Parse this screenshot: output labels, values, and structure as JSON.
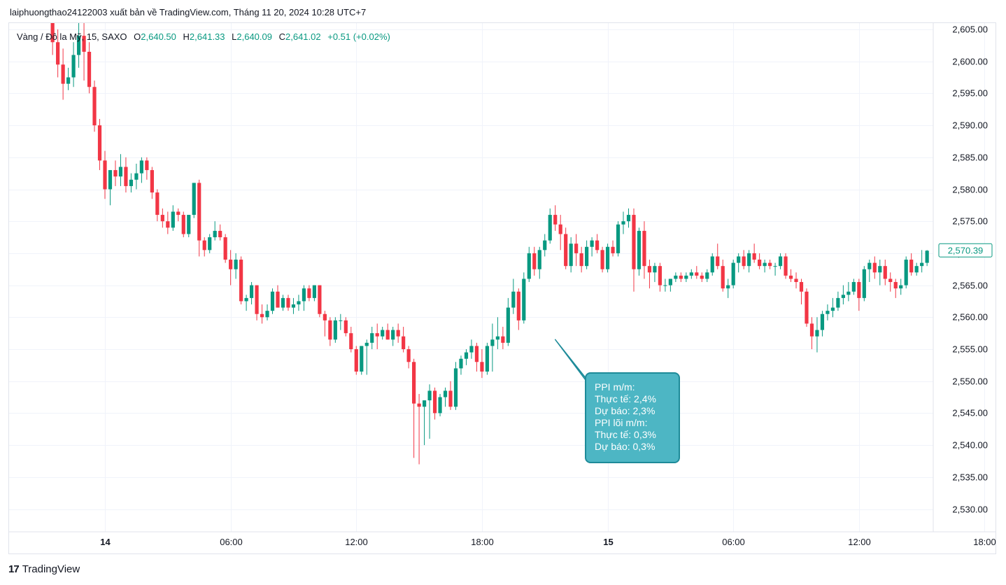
{
  "header": {
    "publisher_text": "laiphuongthao24122003 xuất bản về TradingView.com, Tháng 11 20, 2024 10:28 UTC+7"
  },
  "legend": {
    "symbol": "Vàng / Đô la Mỹ, 15, SAXO",
    "o_label": "O",
    "o_value": "2,640.50",
    "h_label": "H",
    "h_value": "2,641.33",
    "l_label": "L",
    "l_value": "2,640.09",
    "c_label": "C",
    "c_value": "2,641.02",
    "change": "+0.51 (+0.02%)"
  },
  "price_tag": "2,570.39",
  "annotation": {
    "lines": [
      "PPI m/m:",
      "Thực tế: 2,4%",
      "Dự báo: 2,3%",
      "PPI lõi m/m:",
      "Thực tế: 0,3%",
      "Dự báo: 0,3%"
    ]
  },
  "footer": {
    "logo_mark": "17",
    "brand": "TradingView"
  },
  "colors": {
    "up": "#089981",
    "down": "#f23645",
    "grid": "#f0f3fa",
    "annotation_fill": "#4db6c4",
    "annotation_border": "#1e8b99"
  },
  "chart_data": {
    "type": "candlestick",
    "interval": "15",
    "y_ticks": [
      "2,605.00",
      "2,600.00",
      "2,595.00",
      "2,590.00",
      "2,585.00",
      "2,580.00",
      "2,575.00",
      "2,570.00",
      "2,565.00",
      "2,560.00",
      "2,555.00",
      "2,550.00",
      "2,545.00",
      "2,540.00",
      "2,535.00",
      "2,530.00"
    ],
    "y_tick_values": [
      2605,
      2600,
      2595,
      2590,
      2585,
      2580,
      2575,
      2570,
      2565,
      2560,
      2555,
      2550,
      2545,
      2540,
      2535,
      2530
    ],
    "x_ticks": [
      {
        "label": "14",
        "index": 10,
        "bold": true
      },
      {
        "label": "06:00",
        "index": 34,
        "bold": false
      },
      {
        "label": "12:00",
        "index": 58,
        "bold": false
      },
      {
        "label": "18:00",
        "index": 82,
        "bold": false
      },
      {
        "label": "15",
        "index": 106,
        "bold": true
      },
      {
        "label": "06:00",
        "index": 130,
        "bold": false
      },
      {
        "label": "12:00",
        "index": 154,
        "bold": false
      },
      {
        "label": "18:00",
        "index": 178,
        "bold": false
      }
    ],
    "ylim": [
      2526,
      2606
    ],
    "annotation_anchor_index": 96,
    "annotation_anchor_price": 2556.5,
    "candles": [
      [
        2608.0,
        2609.0,
        2601.0,
        2603.0
      ],
      [
        2603.0,
        2605.0,
        2597.5,
        2599.5
      ],
      [
        2599.5,
        2602.0,
        2594.0,
        2596.5
      ],
      [
        2596.5,
        2599.0,
        2595.5,
        2597.5
      ],
      [
        2597.5,
        2603.0,
        2596.0,
        2601.0
      ],
      [
        2601.0,
        2606.0,
        2599.0,
        2604.0
      ],
      [
        2604.0,
        2606.5,
        2597.0,
        2601.5
      ],
      [
        2601.5,
        2603.0,
        2595.0,
        2596.0
      ],
      [
        2596.0,
        2597.0,
        2589.0,
        2590.0
      ],
      [
        2590.0,
        2591.0,
        2583.0,
        2584.5
      ],
      [
        2584.5,
        2586.0,
        2578.5,
        2580.0
      ],
      [
        2580.0,
        2583.0,
        2577.5,
        2583.0
      ],
      [
        2583.0,
        2584.5,
        2580.5,
        2582.0
      ],
      [
        2582.0,
        2585.5,
        2580.5,
        2583.5
      ],
      [
        2583.5,
        2585.0,
        2579.5,
        2580.5
      ],
      [
        2580.5,
        2582.5,
        2579.5,
        2581.5
      ],
      [
        2581.5,
        2584.0,
        2580.0,
        2582.5
      ],
      [
        2582.5,
        2585.0,
        2581.0,
        2584.5
      ],
      [
        2584.5,
        2585.0,
        2581.5,
        2583.0
      ],
      [
        2583.0,
        2583.5,
        2578.5,
        2579.5
      ],
      [
        2579.5,
        2580.0,
        2575.0,
        2576.0
      ],
      [
        2576.0,
        2577.0,
        2574.0,
        2575.0
      ],
      [
        2575.0,
        2576.5,
        2573.0,
        2574.0
      ],
      [
        2574.0,
        2577.5,
        2573.5,
        2576.5
      ],
      [
        2576.5,
        2577.0,
        2575.0,
        2576.0
      ],
      [
        2576.0,
        2576.5,
        2572.5,
        2573.0
      ],
      [
        2573.0,
        2576.0,
        2572.5,
        2576.0
      ],
      [
        2576.0,
        2581.0,
        2575.5,
        2581.0
      ],
      [
        2581.0,
        2581.5,
        2569.5,
        2572.0
      ],
      [
        2572.0,
        2572.5,
        2569.5,
        2570.5
      ],
      [
        2570.5,
        2573.0,
        2570.0,
        2572.5
      ],
      [
        2572.5,
        2575.0,
        2572.0,
        2573.5
      ],
      [
        2573.5,
        2574.5,
        2572.0,
        2572.5
      ],
      [
        2572.5,
        2573.0,
        2568.5,
        2569.0
      ],
      [
        2569.0,
        2570.5,
        2565.0,
        2567.5
      ],
      [
        2567.5,
        2570.0,
        2566.0,
        2569.0
      ],
      [
        2569.0,
        2569.5,
        2562.0,
        2562.5
      ],
      [
        2562.5,
        2563.5,
        2561.0,
        2563.0
      ],
      [
        2563.0,
        2565.5,
        2562.0,
        2565.0
      ],
      [
        2565.0,
        2565.0,
        2559.5,
        2560.5
      ],
      [
        2560.5,
        2562.0,
        2559.0,
        2560.0
      ],
      [
        2560.0,
        2562.0,
        2559.5,
        2561.0
      ],
      [
        2561.0,
        2564.5,
        2560.5,
        2564.0
      ],
      [
        2564.0,
        2565.0,
        2561.5,
        2561.5
      ],
      [
        2561.5,
        2563.5,
        2561.0,
        2563.0
      ],
      [
        2563.0,
        2563.5,
        2561.0,
        2561.5
      ],
      [
        2561.5,
        2563.0,
        2560.5,
        2562.0
      ],
      [
        2562.0,
        2563.5,
        2561.0,
        2562.5
      ],
      [
        2562.5,
        2565.0,
        2561.0,
        2564.5
      ],
      [
        2564.5,
        2565.0,
        2562.5,
        2563.0
      ],
      [
        2563.0,
        2565.0,
        2562.5,
        2565.0
      ],
      [
        2565.0,
        2565.0,
        2560.0,
        2560.5
      ],
      [
        2560.5,
        2561.0,
        2557.0,
        2559.5
      ],
      [
        2559.5,
        2560.0,
        2555.5,
        2556.5
      ],
      [
        2556.5,
        2560.0,
        2556.0,
        2559.5
      ],
      [
        2559.5,
        2560.5,
        2558.0,
        2559.5
      ],
      [
        2559.5,
        2560.0,
        2557.0,
        2557.5
      ],
      [
        2557.5,
        2558.5,
        2554.5,
        2555.0
      ],
      [
        2555.0,
        2555.5,
        2551.0,
        2551.5
      ],
      [
        2551.5,
        2555.5,
        2551.0,
        2555.5
      ],
      [
        2555.5,
        2556.5,
        2551.0,
        2556.0
      ],
      [
        2556.0,
        2558.5,
        2555.0,
        2557.5
      ],
      [
        2557.5,
        2559.0,
        2555.0,
        2557.0
      ],
      [
        2557.0,
        2558.5,
        2556.5,
        2558.0
      ],
      [
        2558.0,
        2559.0,
        2556.5,
        2556.5
      ],
      [
        2556.5,
        2558.5,
        2555.5,
        2558.0
      ],
      [
        2558.0,
        2559.0,
        2556.0,
        2557.0
      ],
      [
        2557.0,
        2558.5,
        2554.5,
        2555.0
      ],
      [
        2555.0,
        2555.5,
        2552.0,
        2553.0
      ],
      [
        2553.0,
        2553.5,
        2538.0,
        2546.5
      ],
      [
        2546.5,
        2548.0,
        2537.0,
        2546.0
      ],
      [
        2546.0,
        2547.0,
        2540.0,
        2547.0
      ],
      [
        2547.0,
        2549.5,
        2541.0,
        2548.5
      ],
      [
        2548.5,
        2549.0,
        2544.0,
        2545.0
      ],
      [
        2545.0,
        2548.0,
        2544.5,
        2547.5
      ],
      [
        2547.5,
        2549.0,
        2546.0,
        2548.5
      ],
      [
        2548.5,
        2550.0,
        2545.5,
        2546.0
      ],
      [
        2546.0,
        2553.0,
        2545.5,
        2552.0
      ],
      [
        2552.0,
        2554.0,
        2551.0,
        2553.5
      ],
      [
        2553.5,
        2555.0,
        2552.5,
        2554.5
      ],
      [
        2554.5,
        2556.5,
        2553.5,
        2555.5
      ],
      [
        2555.5,
        2556.0,
        2551.5,
        2553.0
      ],
      [
        2553.0,
        2555.0,
        2550.5,
        2551.5
      ],
      [
        2551.5,
        2556.0,
        2551.0,
        2555.5
      ],
      [
        2555.5,
        2559.0,
        2551.5,
        2556.5
      ],
      [
        2556.5,
        2560.0,
        2555.0,
        2557.0
      ],
      [
        2557.0,
        2558.5,
        2555.0,
        2556.0
      ],
      [
        2556.0,
        2563.0,
        2555.5,
        2561.5
      ],
      [
        2561.5,
        2566.0,
        2560.5,
        2564.0
      ],
      [
        2564.0,
        2564.5,
        2558.0,
        2559.5
      ],
      [
        2559.5,
        2567.0,
        2559.0,
        2566.0
      ],
      [
        2566.0,
        2571.0,
        2565.5,
        2570.0
      ],
      [
        2570.0,
        2571.0,
        2566.5,
        2567.5
      ],
      [
        2567.5,
        2571.0,
        2566.0,
        2570.5
      ],
      [
        2570.5,
        2573.0,
        2569.5,
        2572.0
      ],
      [
        2572.0,
        2577.0,
        2571.5,
        2576.0
      ],
      [
        2576.0,
        2577.5,
        2573.5,
        2574.5
      ],
      [
        2574.5,
        2576.0,
        2570.5,
        2573.0
      ],
      [
        2573.0,
        2574.0,
        2567.5,
        2568.0
      ],
      [
        2568.0,
        2572.5,
        2567.0,
        2571.5
      ],
      [
        2571.5,
        2573.0,
        2568.0,
        2570.0
      ],
      [
        2570.0,
        2571.0,
        2567.0,
        2568.0
      ],
      [
        2568.0,
        2572.0,
        2567.5,
        2571.0
      ],
      [
        2571.0,
        2572.5,
        2569.5,
        2572.0
      ],
      [
        2572.0,
        2573.0,
        2570.0,
        2570.5
      ],
      [
        2570.5,
        2571.0,
        2567.0,
        2567.5
      ],
      [
        2567.5,
        2571.5,
        2567.0,
        2571.0
      ],
      [
        2571.0,
        2572.0,
        2569.5,
        2570.0
      ],
      [
        2570.0,
        2575.0,
        2569.5,
        2574.5
      ],
      [
        2574.5,
        2576.5,
        2573.0,
        2575.0
      ],
      [
        2575.0,
        2577.0,
        2574.0,
        2576.0
      ],
      [
        2576.0,
        2577.0,
        2564.0,
        2567.5
      ],
      [
        2567.5,
        2574.0,
        2566.5,
        2573.5
      ],
      [
        2573.5,
        2575.0,
        2566.0,
        2568.0
      ],
      [
        2568.0,
        2569.0,
        2564.5,
        2567.0
      ],
      [
        2567.0,
        2568.5,
        2565.5,
        2568.0
      ],
      [
        2568.0,
        2568.5,
        2564.0,
        2565.0
      ],
      [
        2565.0,
        2566.0,
        2564.0,
        2565.0
      ],
      [
        2565.0,
        2566.0,
        2564.0,
        2566.0
      ],
      [
        2566.0,
        2567.0,
        2565.5,
        2566.5
      ],
      [
        2566.5,
        2567.0,
        2565.5,
        2566.0
      ],
      [
        2566.0,
        2567.0,
        2565.5,
        2566.5
      ],
      [
        2566.5,
        2567.5,
        2566.0,
        2567.0
      ],
      [
        2567.0,
        2568.0,
        2566.0,
        2566.5
      ],
      [
        2566.5,
        2567.0,
        2565.5,
        2566.0
      ],
      [
        2566.0,
        2567.5,
        2565.5,
        2567.0
      ],
      [
        2567.0,
        2570.0,
        2566.5,
        2569.5
      ],
      [
        2569.5,
        2571.5,
        2567.5,
        2568.0
      ],
      [
        2568.0,
        2569.0,
        2564.0,
        2564.5
      ],
      [
        2564.5,
        2566.0,
        2563.0,
        2565.0
      ],
      [
        2565.0,
        2569.0,
        2564.5,
        2568.5
      ],
      [
        2568.5,
        2570.0,
        2567.0,
        2569.5
      ],
      [
        2569.5,
        2570.5,
        2567.5,
        2568.0
      ],
      [
        2568.0,
        2570.5,
        2567.0,
        2570.0
      ],
      [
        2570.0,
        2571.5,
        2568.5,
        2569.0
      ],
      [
        2569.0,
        2570.0,
        2567.5,
        2568.0
      ],
      [
        2568.0,
        2569.0,
        2567.0,
        2568.5
      ],
      [
        2568.5,
        2569.0,
        2567.5,
        2568.0
      ],
      [
        2568.0,
        2568.5,
        2566.5,
        2568.0
      ],
      [
        2568.0,
        2570.0,
        2567.5,
        2569.5
      ],
      [
        2569.5,
        2570.0,
        2566.0,
        2566.5
      ],
      [
        2566.5,
        2567.5,
        2565.5,
        2566.0
      ],
      [
        2566.0,
        2567.0,
        2564.5,
        2565.5
      ],
      [
        2565.5,
        2566.0,
        2562.0,
        2564.0
      ],
      [
        2564.0,
        2564.5,
        2558.5,
        2559.0
      ],
      [
        2559.0,
        2560.0,
        2555.0,
        2557.0
      ],
      [
        2557.0,
        2560.0,
        2554.5,
        2558.0
      ],
      [
        2558.0,
        2561.0,
        2557.0,
        2560.5
      ],
      [
        2560.5,
        2562.0,
        2559.5,
        2561.0
      ],
      [
        2561.0,
        2563.0,
        2560.0,
        2561.5
      ],
      [
        2561.5,
        2564.0,
        2561.0,
        2563.0
      ],
      [
        2563.0,
        2565.0,
        2562.0,
        2563.5
      ],
      [
        2563.5,
        2565.5,
        2562.5,
        2564.0
      ],
      [
        2564.0,
        2566.0,
        2563.5,
        2565.5
      ],
      [
        2565.5,
        2566.0,
        2561.0,
        2563.0
      ],
      [
        2563.0,
        2568.0,
        2562.5,
        2567.5
      ],
      [
        2567.5,
        2569.0,
        2565.5,
        2568.5
      ],
      [
        2568.5,
        2569.5,
        2566.0,
        2567.0
      ],
      [
        2567.0,
        2569.0,
        2565.0,
        2568.0
      ],
      [
        2568.0,
        2569.0,
        2565.0,
        2566.0
      ],
      [
        2566.0,
        2567.0,
        2564.0,
        2565.5
      ],
      [
        2565.5,
        2566.0,
        2563.0,
        2564.5
      ],
      [
        2564.5,
        2566.0,
        2563.5,
        2565.0
      ],
      [
        2565.0,
        2569.5,
        2564.5,
        2569.0
      ],
      [
        2569.0,
        2570.0,
        2566.5,
        2567.0
      ],
      [
        2567.0,
        2568.5,
        2566.5,
        2568.0
      ],
      [
        2568.0,
        2570.5,
        2567.0,
        2568.5
      ],
      [
        2568.5,
        2570.5,
        2568.0,
        2570.4
      ]
    ]
  }
}
